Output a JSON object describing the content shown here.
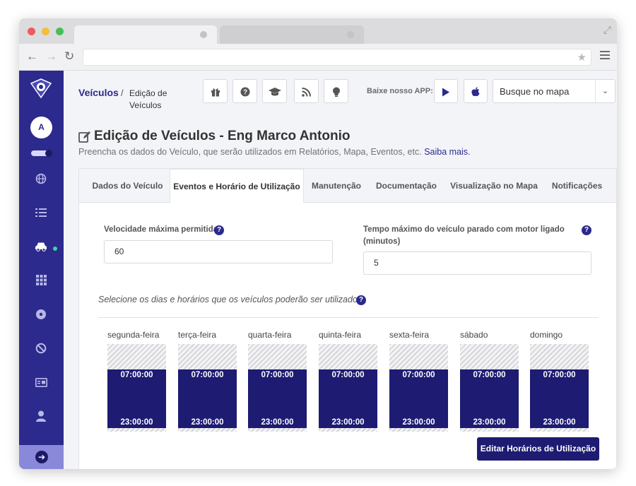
{
  "browser": {
    "star_icon": "star-icon",
    "back_icon": "←",
    "forward_icon": "→",
    "reload_icon": "↻"
  },
  "sidebar": {
    "avatar_initial": "A",
    "icons": [
      "globe-icon",
      "list-icon",
      "car-icon",
      "grid-icon",
      "disc-icon",
      "ban-icon",
      "id-card-icon",
      "user-icon"
    ],
    "active_icon": "car-icon",
    "collapse_icon": "arrow-right-circle-icon"
  },
  "breadcrumb": {
    "link": "Veículos",
    "separator": "/",
    "current": "Edição de Veículos"
  },
  "header": {
    "app_label": "Baixe nosso APP:",
    "map_search_value": "Busque no mapa",
    "buttons": [
      "gift-icon",
      "help-icon",
      "graduation-cap-icon",
      "rss-icon",
      "lightbulb-icon"
    ],
    "stores": [
      "google-play-icon",
      "apple-icon"
    ]
  },
  "page": {
    "title": "Edição de Veículos - Eng Marco Antonio",
    "subtitle": "Preencha os dados do Veículo, que serão utilizados em Relatórios, Mapa, Eventos, etc.",
    "subtitle_link": "Saiba mais."
  },
  "tabs": [
    {
      "label": "Dados do Veículo",
      "active": false
    },
    {
      "label": "Eventos e Horário de Utilização",
      "active": true
    },
    {
      "label": "Manutenção",
      "active": false
    },
    {
      "label": "Documentação",
      "active": false
    },
    {
      "label": "Visualização no Mapa",
      "active": false
    },
    {
      "label": "Notificações",
      "active": false
    }
  ],
  "form": {
    "max_speed_label": "Velocidade máxima permitida",
    "max_speed_value": "60",
    "max_idle_label": "Tempo máximo do veículo parado com motor ligado (minutos)",
    "max_idle_value": "5"
  },
  "schedule": {
    "label": "Selecione os dias e horários que os veículos poderão ser utilizados.",
    "days": [
      {
        "name": "segunda-feira",
        "start": "07:00:00",
        "end": "23:00:00"
      },
      {
        "name": "terça-feira",
        "start": "07:00:00",
        "end": "23:00:00"
      },
      {
        "name": "quarta-feira",
        "start": "07:00:00",
        "end": "23:00:00"
      },
      {
        "name": "quinta-feira",
        "start": "07:00:00",
        "end": "23:00:00"
      },
      {
        "name": "sexta-feira",
        "start": "07:00:00",
        "end": "23:00:00"
      },
      {
        "name": "sábado",
        "start": "07:00:00",
        "end": "23:00:00"
      },
      {
        "name": "domingo",
        "start": "07:00:00",
        "end": "23:00:00"
      }
    ],
    "edit_button": "Editar Horários de Utilização"
  },
  "colors": {
    "primary": "#2c2a8c",
    "dark": "#1d1b72",
    "status_dot": "#3fd6a0"
  }
}
